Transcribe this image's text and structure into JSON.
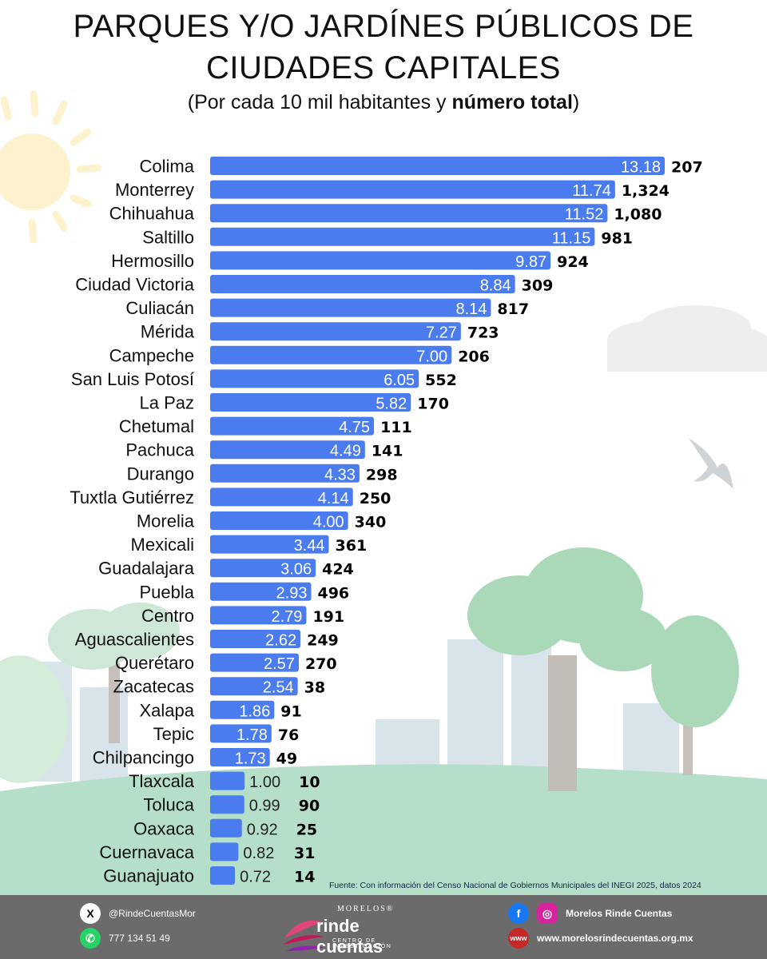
{
  "title_line1": "PARQUES Y/O JARDÍNES PÚBLICOS DE",
  "title_line2": "CIUDADES CAPITALES",
  "subtitle_pre": "(Por cada 10 mil habitantes y ",
  "subtitle_bold": "número total",
  "subtitle_post": ")",
  "source": "Fuente: Con información del Censo Nacional de Gobiernos Municipales del INEGI 2025, datos 2024",
  "colors": {
    "bar": "#4a7cf0",
    "bar_label_inside": "#ffffff",
    "bar_label_outside": "#222222",
    "total_label": "#000000",
    "footer": "#6b6b6b"
  },
  "chart_data": {
    "type": "bar",
    "orientation": "horizontal",
    "series": [
      {
        "values": [
          13.18,
          11.74,
          11.52,
          11.15,
          9.87,
          8.84,
          8.14,
          7.27,
          7.0,
          6.05,
          5.82,
          4.75,
          4.49,
          4.33,
          4.14,
          4.0,
          3.44,
          3.06,
          2.93,
          2.79,
          2.62,
          2.57,
          2.54,
          1.86,
          1.78,
          1.73,
          1.0,
          0.99,
          0.92,
          0.82,
          0.72
        ],
        "labels": [
          "13.18",
          "11.74",
          "11.52",
          "11.15",
          "9.87",
          "8.84",
          "8.14",
          "7.27",
          "7.00",
          "6.05",
          "5.82",
          "4.75",
          "4.49",
          "4.33",
          "4.14",
          "4.00",
          "3.44",
          "3.06",
          "2.93",
          "2.79",
          "2.62",
          "2.57",
          "2.54",
          "1.86",
          "1.78",
          "1.73",
          "1.00",
          "0.99",
          "0.92",
          "0.82",
          "0.72"
        ]
      }
    ],
    "categories": [
      "Colima",
      "Monterrey",
      "Chihuahua",
      "Saltillo",
      "Hermosillo",
      "Ciudad Victoria",
      "Culiacán",
      "Mérida",
      "Campeche",
      "San Luis Potosí",
      "La Paz",
      "Chetumal",
      "Pachuca",
      "Durango",
      "Tuxtla Gutiérrez",
      "Morelia",
      "Mexicali",
      "Guadalajara",
      "Puebla",
      "Centro",
      "Aguascalientes",
      "Querétaro",
      "Zacatecas",
      "Xalapa",
      "Tepic",
      "Chilpancingo",
      "Tlaxcala",
      "Toluca",
      "Oaxaca",
      "Cuernavaca",
      "Guanajuato"
    ],
    "totals": [
      "207",
      "1,324",
      "1,080",
      "981",
      "924",
      "309",
      "817",
      "723",
      "206",
      "552",
      "170",
      "111",
      "141",
      "298",
      "250",
      "340",
      "361",
      "424",
      "496",
      "191",
      "249",
      "270",
      "38",
      "91",
      "76",
      "49",
      "10",
      "90",
      "25",
      "31",
      "14"
    ],
    "xlim": [
      0,
      13.18
    ],
    "grid": false,
    "legend": "none"
  },
  "footer": {
    "twitter_handle": "@RindeCuentasMor",
    "phone": "777 134 51 49",
    "logo_top": "MORELOS",
    "logo_reg": "®",
    "logo_main": "rinde cuentas",
    "logo_sub": "CENTRO DE INVESTIGACIÓN",
    "social_name": "Morelos Rinde Cuentas",
    "website": "www.morelosrindecuentas.org.mx",
    "icon_x": "x-icon",
    "icon_whatsapp": "whatsapp-icon",
    "icon_facebook": "facebook-icon",
    "icon_instagram": "instagram-icon",
    "icon_web": "web-icon"
  }
}
